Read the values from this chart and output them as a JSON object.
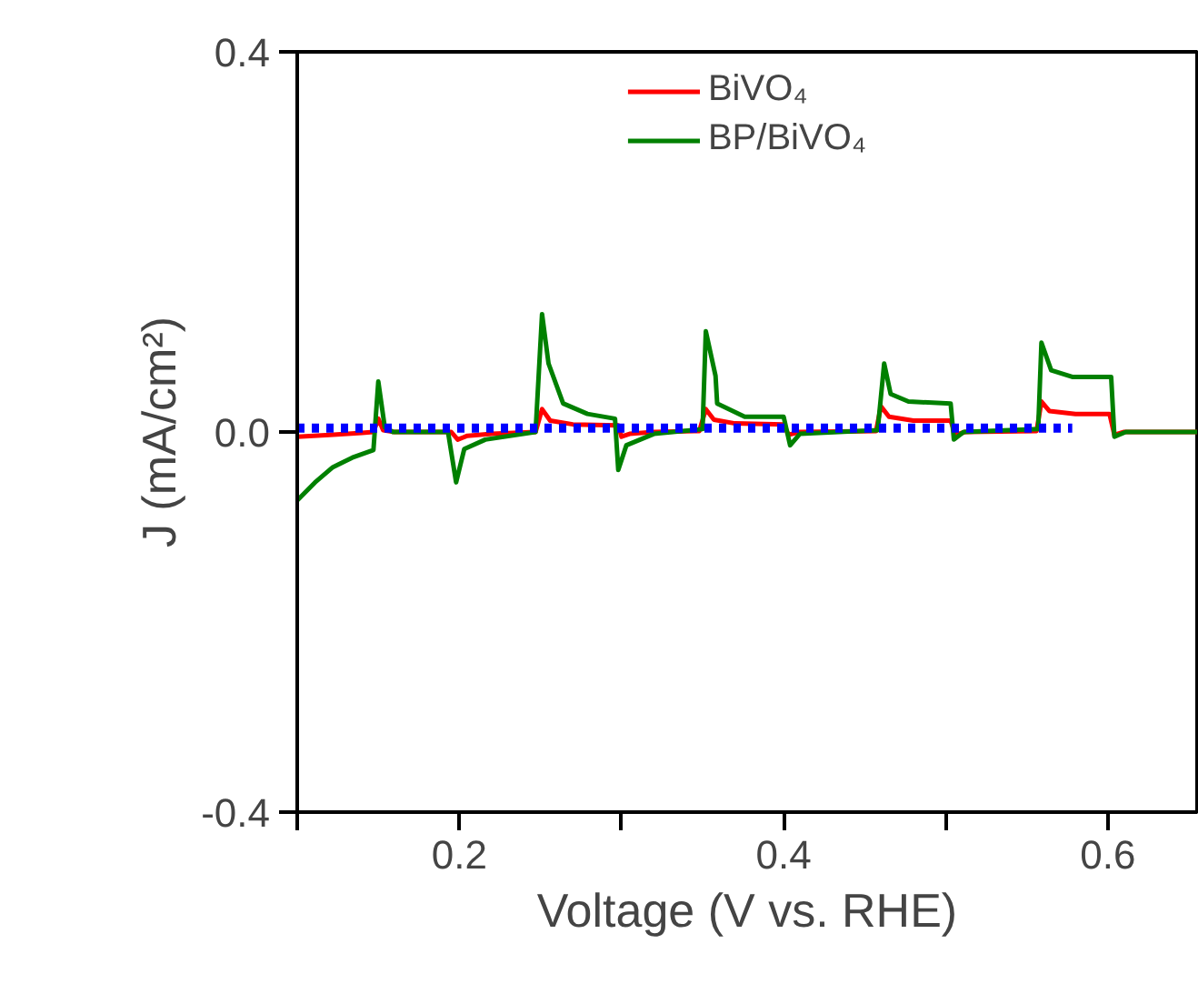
{
  "chart_data": {
    "type": "line",
    "xlabel": "Voltage (V vs. RHE)",
    "ylabel": "J (mA/cm²)",
    "xlim": [
      0.1,
      0.655
    ],
    "ylim": [
      -0.4,
      0.4
    ],
    "xticks": [
      {
        "value": 0.1,
        "label": null
      },
      0.2,
      {
        "value": 0.3,
        "label": null
      },
      0.4,
      {
        "value": 0.5,
        "label": null
      },
      0.6
    ],
    "yticks": [
      -0.4,
      {
        "value": 0,
        "label": "0.0"
      },
      0.4
    ],
    "grid": false,
    "legend": "top",
    "marker": "none",
    "series": [
      {
        "name": "BiVO₄",
        "color": "#ff0000",
        "x": [
          0.1,
          0.12,
          0.14,
          0.147,
          0.15,
          0.153,
          0.16,
          0.195,
          0.199,
          0.205,
          0.22,
          0.247,
          0.251,
          0.256,
          0.27,
          0.298,
          0.3,
          0.305,
          0.32,
          0.348,
          0.352,
          0.357,
          0.37,
          0.4,
          0.403,
          0.41,
          0.457,
          0.46,
          0.465,
          0.48,
          0.503,
          0.506,
          0.512,
          0.556,
          0.559,
          0.564,
          0.58,
          0.601,
          0.604,
          0.61,
          0.655
        ],
        "values": [
          -0.005,
          -0.003,
          -0.001,
          0.0,
          0.014,
          0.002,
          0.0,
          0.0,
          -0.008,
          -0.004,
          -0.002,
          0.0,
          0.024,
          0.012,
          0.008,
          0.007,
          -0.005,
          -0.002,
          0.0,
          0.001,
          0.024,
          0.013,
          0.009,
          0.008,
          -0.003,
          0.0,
          0.001,
          0.027,
          0.016,
          0.012,
          0.012,
          -0.003,
          0.0,
          0.001,
          0.032,
          0.022,
          0.019,
          0.019,
          -0.003,
          0.0,
          0.0
        ]
      },
      {
        "name": "BP/BiVO₄",
        "color": "#008000",
        "x": [
          0.1,
          0.111,
          0.122,
          0.134,
          0.147,
          0.15,
          0.154,
          0.159,
          0.193,
          0.198,
          0.203,
          0.216,
          0.247,
          0.251,
          0.255,
          0.264,
          0.279,
          0.296,
          0.298,
          0.303,
          0.32,
          0.35,
          0.352,
          0.358,
          0.359,
          0.376,
          0.4,
          0.404,
          0.41,
          0.458,
          0.462,
          0.466,
          0.477,
          0.503,
          0.505,
          0.511,
          0.557,
          0.559,
          0.565,
          0.578,
          0.602,
          0.604,
          0.611,
          0.655
        ],
        "values": [
          -0.072,
          -0.053,
          -0.037,
          -0.027,
          -0.019,
          0.053,
          0.005,
          0.0,
          0.0,
          -0.053,
          -0.018,
          -0.008,
          0.0,
          0.124,
          0.072,
          0.03,
          0.019,
          0.014,
          -0.04,
          -0.014,
          -0.002,
          0.003,
          0.106,
          0.059,
          0.03,
          0.016,
          0.016,
          -0.014,
          -0.002,
          0.002,
          0.072,
          0.04,
          0.032,
          0.03,
          -0.008,
          0.0,
          0.003,
          0.094,
          0.065,
          0.058,
          0.058,
          -0.005,
          0.0,
          0.0
        ]
      },
      {
        "color": "#0000ff",
        "line_style": "dotted",
        "x": [
          0.1,
          0.578
        ],
        "values": [
          0.004,
          0.004
        ]
      }
    ]
  }
}
